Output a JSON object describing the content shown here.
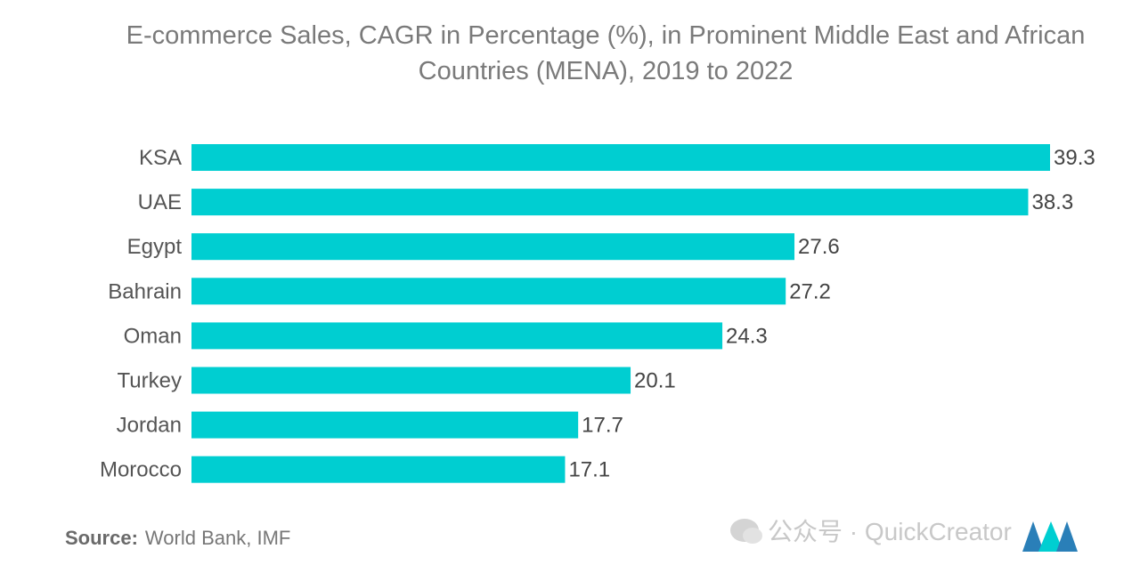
{
  "chart_data": {
    "type": "bar",
    "orientation": "horizontal",
    "title": "E-commerce Sales, CAGR in Percentage (%), in Prominent Middle East and African Countries (MENA), 2019 to 2022",
    "categories": [
      "KSA",
      "UAE",
      "Egypt",
      "Bahrain",
      "Oman",
      "Turkey",
      "Jordan",
      "Morocco"
    ],
    "values": [
      39.3,
      38.3,
      27.6,
      27.2,
      24.3,
      20.1,
      17.7,
      17.1
    ],
    "value_labels": [
      "39.3",
      "38.3",
      "27.6",
      "27.2",
      "24.3",
      "20.1",
      "17.7",
      "17.1"
    ],
    "xlim": [
      0,
      39.3
    ],
    "grid": false,
    "legend": "none",
    "bar_color": "#00ced1"
  },
  "source": {
    "label": "Source:",
    "text": "World Bank, IMF"
  },
  "watermark": {
    "text": "公众号 · QuickCreator",
    "icon": "wechat-icon"
  },
  "logo": {
    "icon": "mordor-logo-icon",
    "colors": [
      "#2a7fb8",
      "#00ced1"
    ]
  }
}
